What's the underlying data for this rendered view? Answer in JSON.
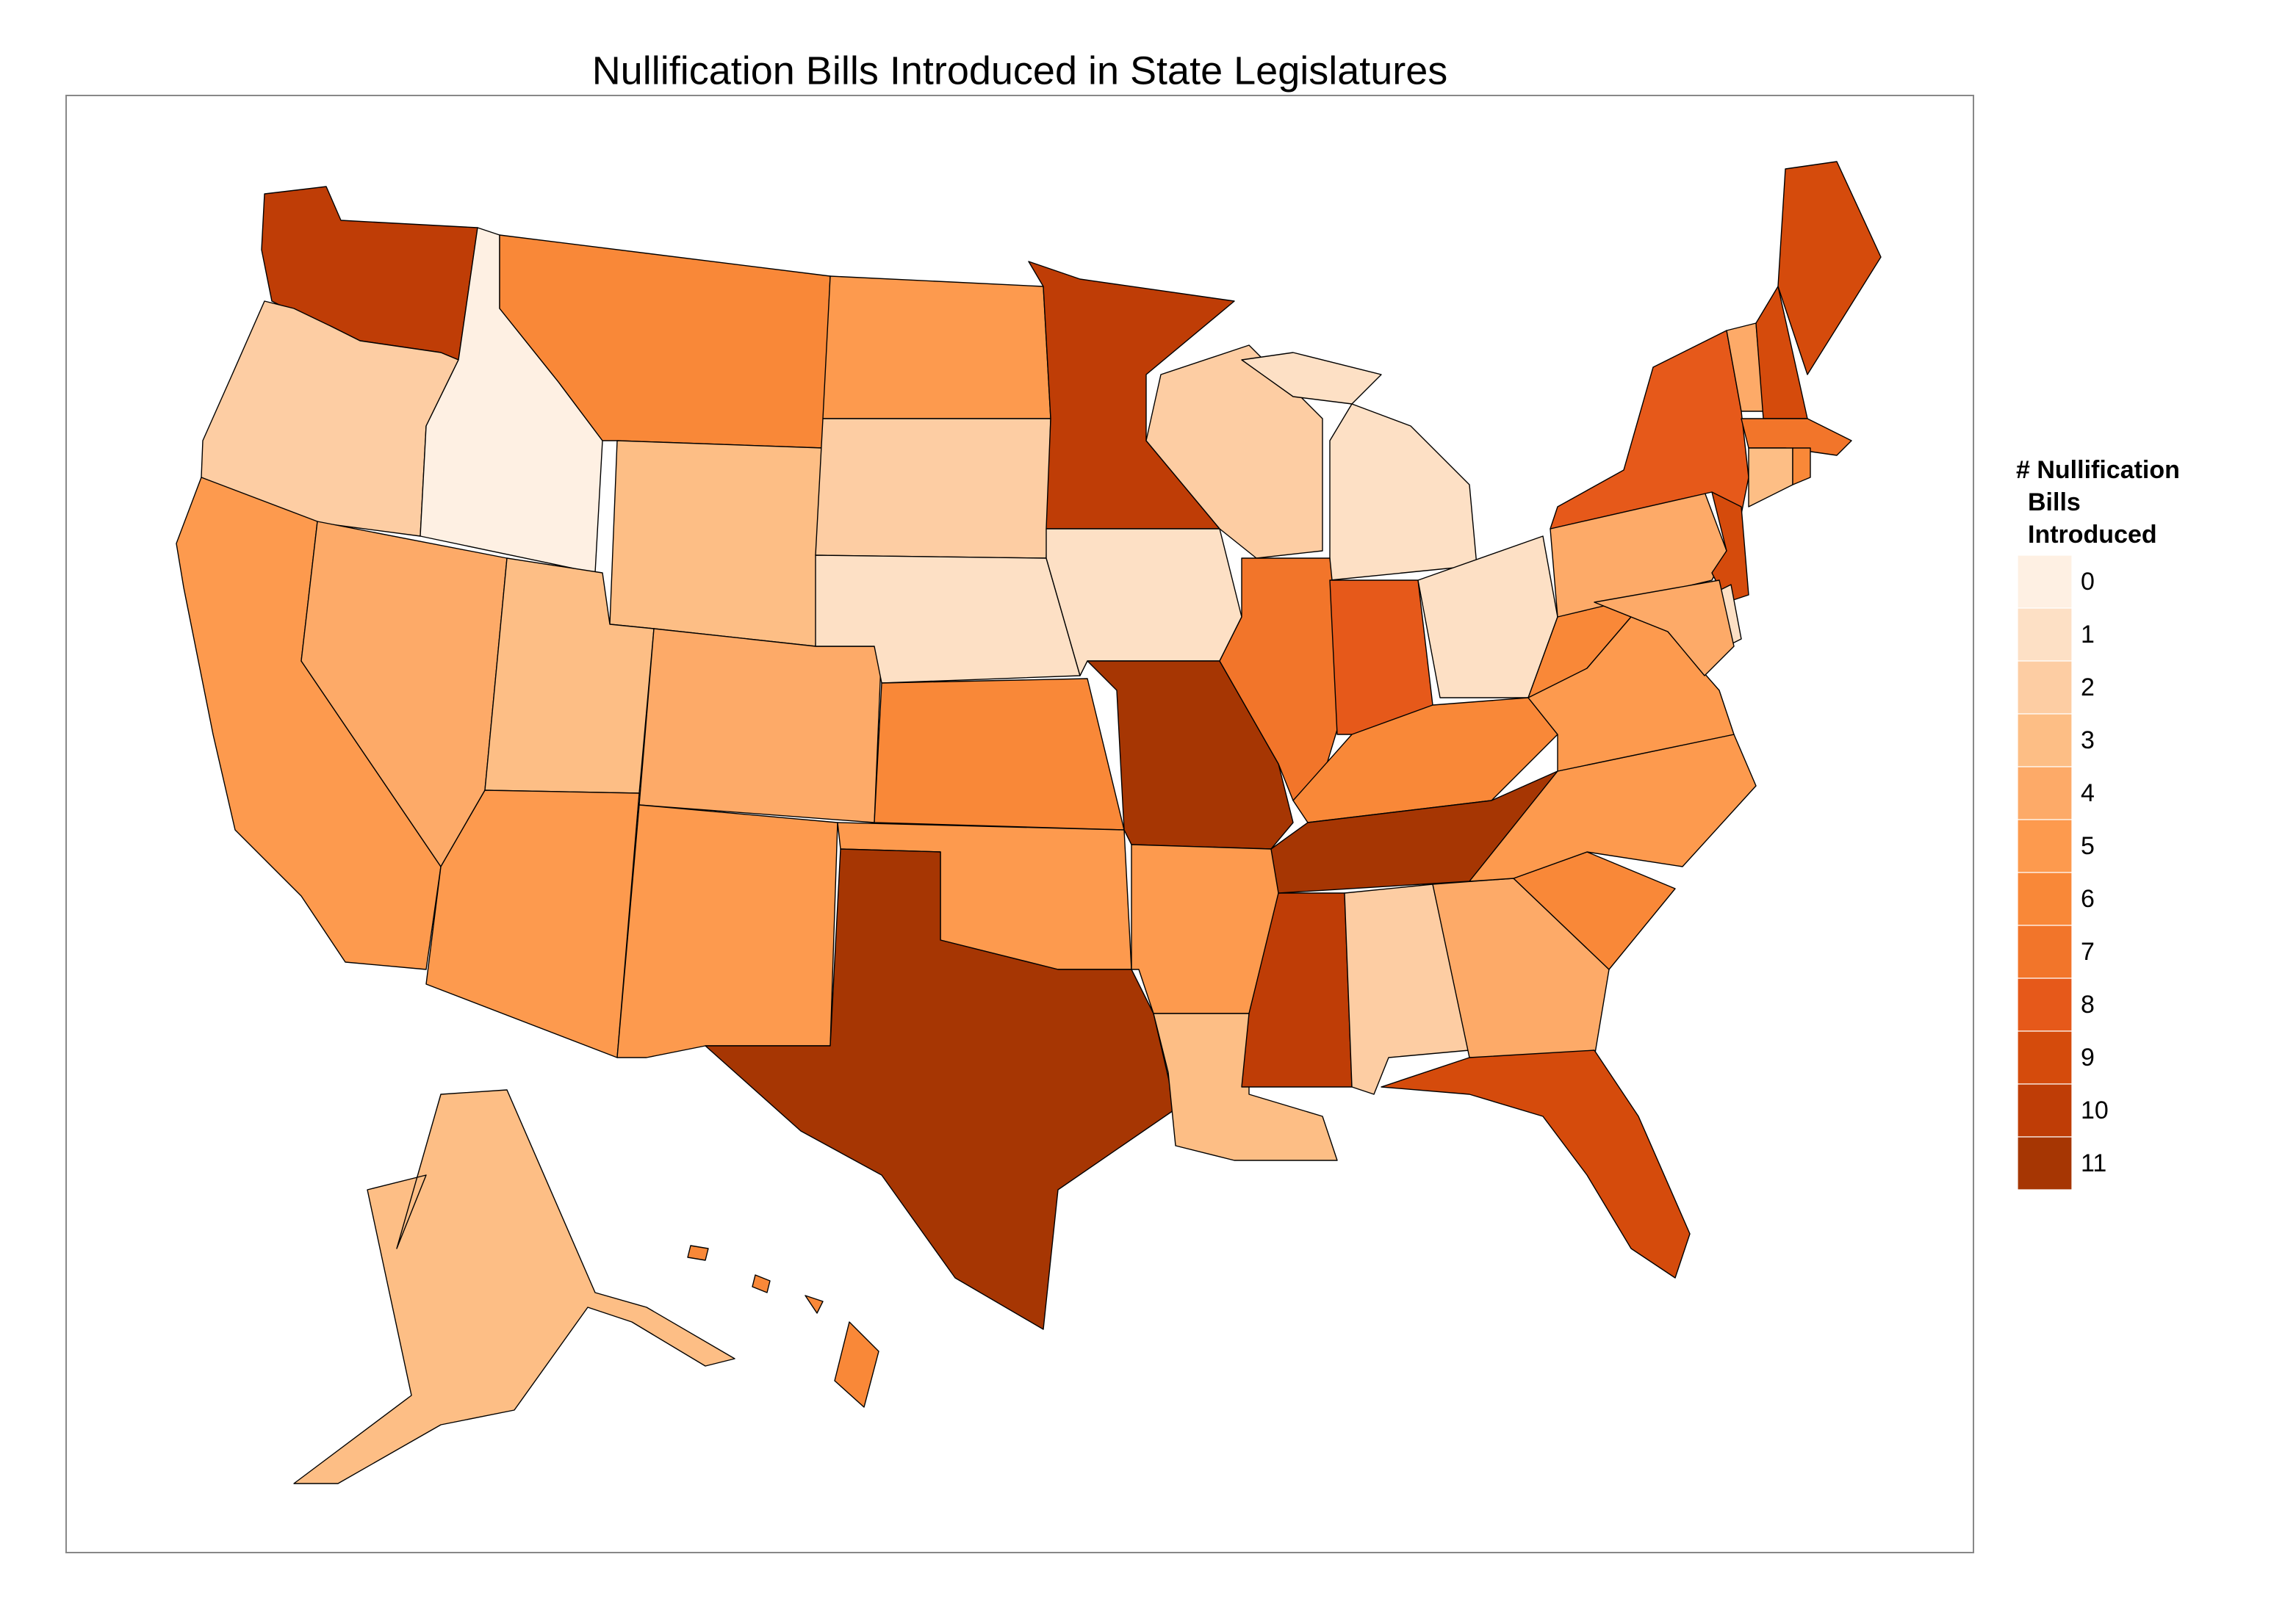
{
  "chart_data": {
    "type": "choropleth",
    "title": "Nullification Bills Introduced in State Legislatures",
    "legend_title": [
      "# Nullification",
      "Bills",
      "Introduced"
    ],
    "scale": {
      "values": [
        0,
        1,
        2,
        3,
        4,
        5,
        6,
        7,
        8,
        9,
        10,
        11
      ],
      "colors": [
        "#fef0e3",
        "#fde0c5",
        "#fdcda3",
        "#fdbe85",
        "#fdaa68",
        "#fd9a4e",
        "#f98838",
        "#f2752a",
        "#e6591a",
        "#d54b0c",
        "#bf3d06",
        "#a63603"
      ]
    },
    "values": [
      10,
      2,
      0,
      5,
      4,
      6,
      3,
      3,
      5,
      4,
      5,
      5,
      2,
      1,
      6,
      5,
      11,
      10,
      1,
      11,
      5,
      3,
      2,
      1,
      7,
      8,
      1,
      10,
      6,
      11,
      2,
      4,
      9,
      6,
      6,
      5,
      5,
      4,
      8,
      9,
      1,
      4,
      4,
      9,
      9,
      7,
      3,
      6,
      3,
      6
    ]
  }
}
